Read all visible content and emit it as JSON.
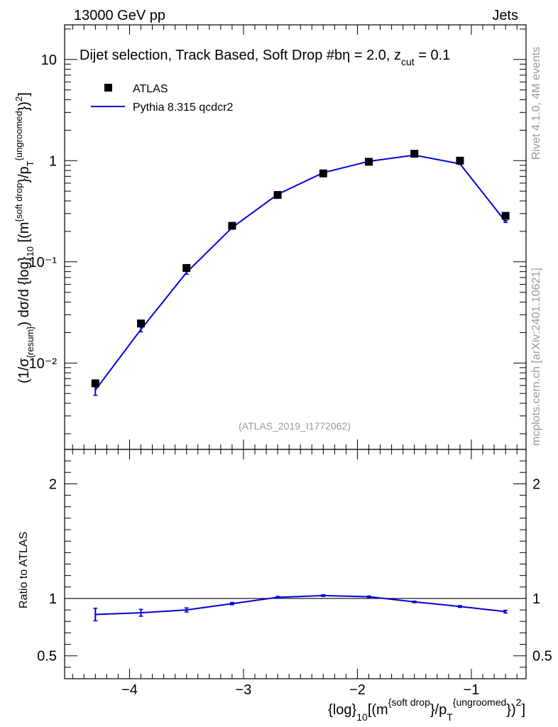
{
  "header": {
    "energy_label": "13000 GeV pp",
    "category_label": "Jets",
    "selection_title": "Dijet selection, Track Based, Soft Drop #bη = 2.0, z",
    "selection_sub": "cut",
    "selection_tail": " = 0.1"
  },
  "side": {
    "rivet_label": "Rivet 4.1.0,  4M events",
    "mcplots_label": "mcplots.cern.ch [arXiv:2401.10621]"
  },
  "watermark": "(ATLAS_2019_I1772062)",
  "legend": {
    "data_label": "ATLAS",
    "mc_label": "Pythia 8.315 qcdcr2"
  },
  "colors": {
    "data": "#000000",
    "mc": "#0000dd",
    "grey": "#999999"
  },
  "main_axis": {
    "ylabel_main": "(1/σ_{resum}) dσ/d {log}_10 [(m^{soft drop}/p_T^{ungroomed})²]",
    "y_tick_labels": [
      "10⁻²",
      "10⁻¹",
      "1",
      "10"
    ]
  },
  "ratio_axis": {
    "ylabel": "Ratio to ATLAS",
    "tick_labels": [
      "0.5",
      "1",
      "2"
    ]
  },
  "x_axis": {
    "tick_labels": [
      "−4",
      "−3",
      "−2",
      "−1"
    ],
    "xlabel_a": "{log}",
    "xlabel_sub1": "10",
    "xlabel_b": "[(m",
    "xlabel_sup1": "{soft drop",
    "xlabel_c": "}/p",
    "xlabel_sub2": "T",
    "xlabel_sup2": "{ungroomed",
    "xlabel_d": "})",
    "xlabel_sup3": "2",
    "xlabel_e": "]"
  },
  "chart_data": {
    "type": "line",
    "xlim": [
      -4.57,
      -0.52
    ],
    "ylim_main": [
      0.0014,
      22
    ],
    "ylim_ratio": [
      0.3,
      2.3
    ],
    "x": [
      -4.3,
      -3.9,
      -3.5,
      -3.1,
      -2.7,
      -2.3,
      -1.9,
      -1.5,
      -1.1,
      -0.7
    ],
    "series": [
      {
        "name": "ATLAS",
        "values": [
          0.0063,
          0.0246,
          0.087,
          0.227,
          0.458,
          0.748,
          0.975,
          1.17,
          1.0,
          0.285
        ]
      },
      {
        "name": "Pythia 8.315 qcdcr2",
        "values": [
          0.0054,
          0.0215,
          0.0785,
          0.218,
          0.465,
          0.76,
          0.985,
          1.135,
          0.93,
          0.25
        ],
        "errors": [
          0.0006,
          0.0012,
          0.003,
          0.005,
          0.008,
          0.01,
          0.012,
          0.012,
          0.012,
          0.005
        ]
      }
    ],
    "ratio": {
      "name": "Pythia / ATLAS",
      "values": [
        0.86,
        0.875,
        0.9,
        0.955,
        1.01,
        1.025,
        1.015,
        0.97,
        0.93,
        0.885
      ],
      "errors": [
        0.055,
        0.03,
        0.018,
        0.01,
        0.008,
        0.007,
        0.007,
        0.007,
        0.008,
        0.012
      ]
    }
  }
}
